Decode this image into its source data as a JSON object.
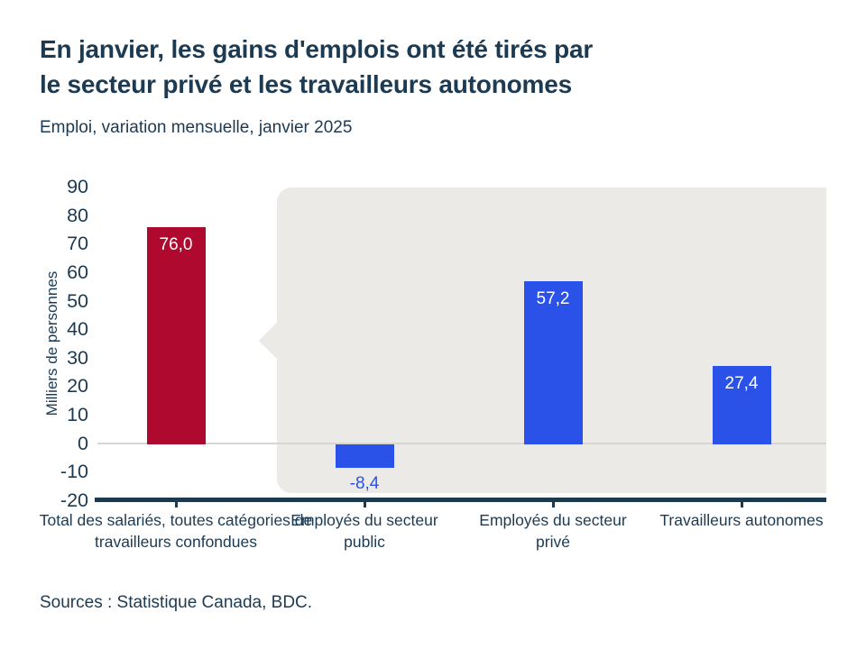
{
  "header": {
    "title_line1": "En janvier, les gains d'emplois ont été tirés par",
    "title_line2": "le secteur privé et les travailleurs autonomes",
    "subtitle": "Emploi, variation mensuelle, janvier 2025"
  },
  "footer": {
    "source": "Sources : Statistique Canada, BDC."
  },
  "colors": {
    "text_navy": "#1C3A52",
    "axis_navy": "#1C394D",
    "bar_red": "#B0092F",
    "bar_blue": "#2B52E8",
    "panel_gray": "#EBEAE7",
    "zero_line_gray": "#D8D6D2",
    "value_label_white": "#FFFFFF"
  },
  "chart_data": {
    "type": "bar",
    "title": "En janvier, les gains d'emplois ont été tirés par le secteur privé et les travailleurs autonomes",
    "subtitle": "Emploi, variation mensuelle, janvier 2025",
    "xlabel": "",
    "ylabel": "Milliers de personnes",
    "ylim": [
      -20,
      90
    ],
    "ytick_step": 10,
    "yticks": [
      "90",
      "80",
      "70",
      "60",
      "50",
      "40",
      "30",
      "20",
      "10",
      "0",
      "-10",
      "-20"
    ],
    "ytick_values": [
      90,
      80,
      70,
      60,
      50,
      40,
      30,
      20,
      10,
      0,
      -10,
      -20
    ],
    "categories": [
      "Total des salariés, toutes catégories de travailleurs confondues",
      "Employés du secteur public",
      "Employés du secteur privé",
      "Travailleurs autonomes"
    ],
    "values": [
      76.0,
      -8.4,
      57.2,
      27.4
    ],
    "value_labels": [
      "76,0",
      "-8,4",
      "57,2",
      "27,4"
    ],
    "bar_colors": [
      "#B0092F",
      "#2B52E8",
      "#2B52E8",
      "#2B52E8"
    ],
    "grid": "zero-baseline only",
    "legend": "none",
    "highlight_panel": {
      "covers_categories": [
        "Employés du secteur public",
        "Employés du secteur privé",
        "Travailleurs autonomes"
      ],
      "color": "#EBEAE7",
      "shape": "rounded rectangle with left-pointing speech-bubble notch"
    }
  }
}
